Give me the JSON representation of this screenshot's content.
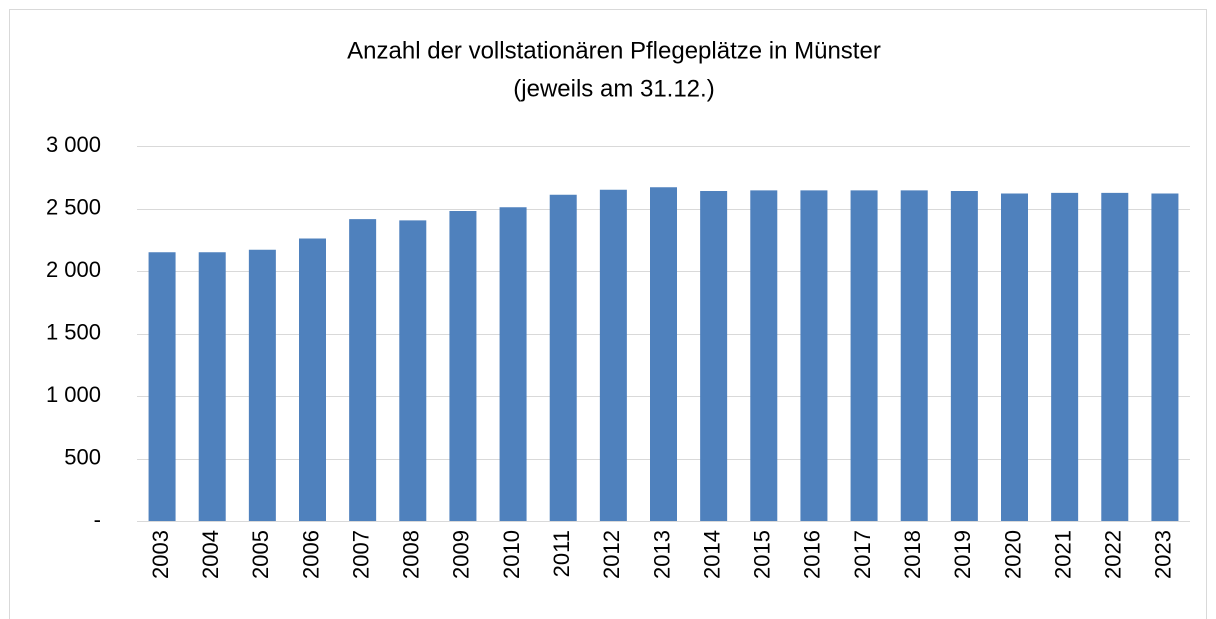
{
  "chart_data": {
    "type": "bar",
    "title": "Anzahl der vollstationären Pflegeplätze in Münster",
    "subtitle": "(jeweils am 31.12.)",
    "categories": [
      "2003",
      "2004",
      "2005",
      "2006",
      "2007",
      "2008",
      "2009",
      "2010",
      "2011",
      "2012",
      "2013",
      "2014",
      "2015",
      "2016",
      "2017",
      "2018",
      "2019",
      "2020",
      "2021",
      "2022",
      "2023"
    ],
    "values": [
      2150,
      2150,
      2170,
      2260,
      2415,
      2405,
      2480,
      2510,
      2610,
      2650,
      2670,
      2640,
      2645,
      2645,
      2645,
      2645,
      2640,
      2620,
      2625,
      2625,
      2620
    ],
    "color": "#4f81bd",
    "ylim": [
      0,
      3000
    ],
    "yticks": [
      {
        "value": 0,
        "label": "-"
      },
      500,
      {
        "value": 1000,
        "label": "1 000"
      },
      {
        "value": 1500,
        "label": "1 500"
      },
      {
        "value": 2000,
        "label": "2 000"
      },
      {
        "value": 2500,
        "label": "2 500"
      },
      {
        "value": 3000,
        "label": "3 000"
      }
    ],
    "grid": true
  }
}
